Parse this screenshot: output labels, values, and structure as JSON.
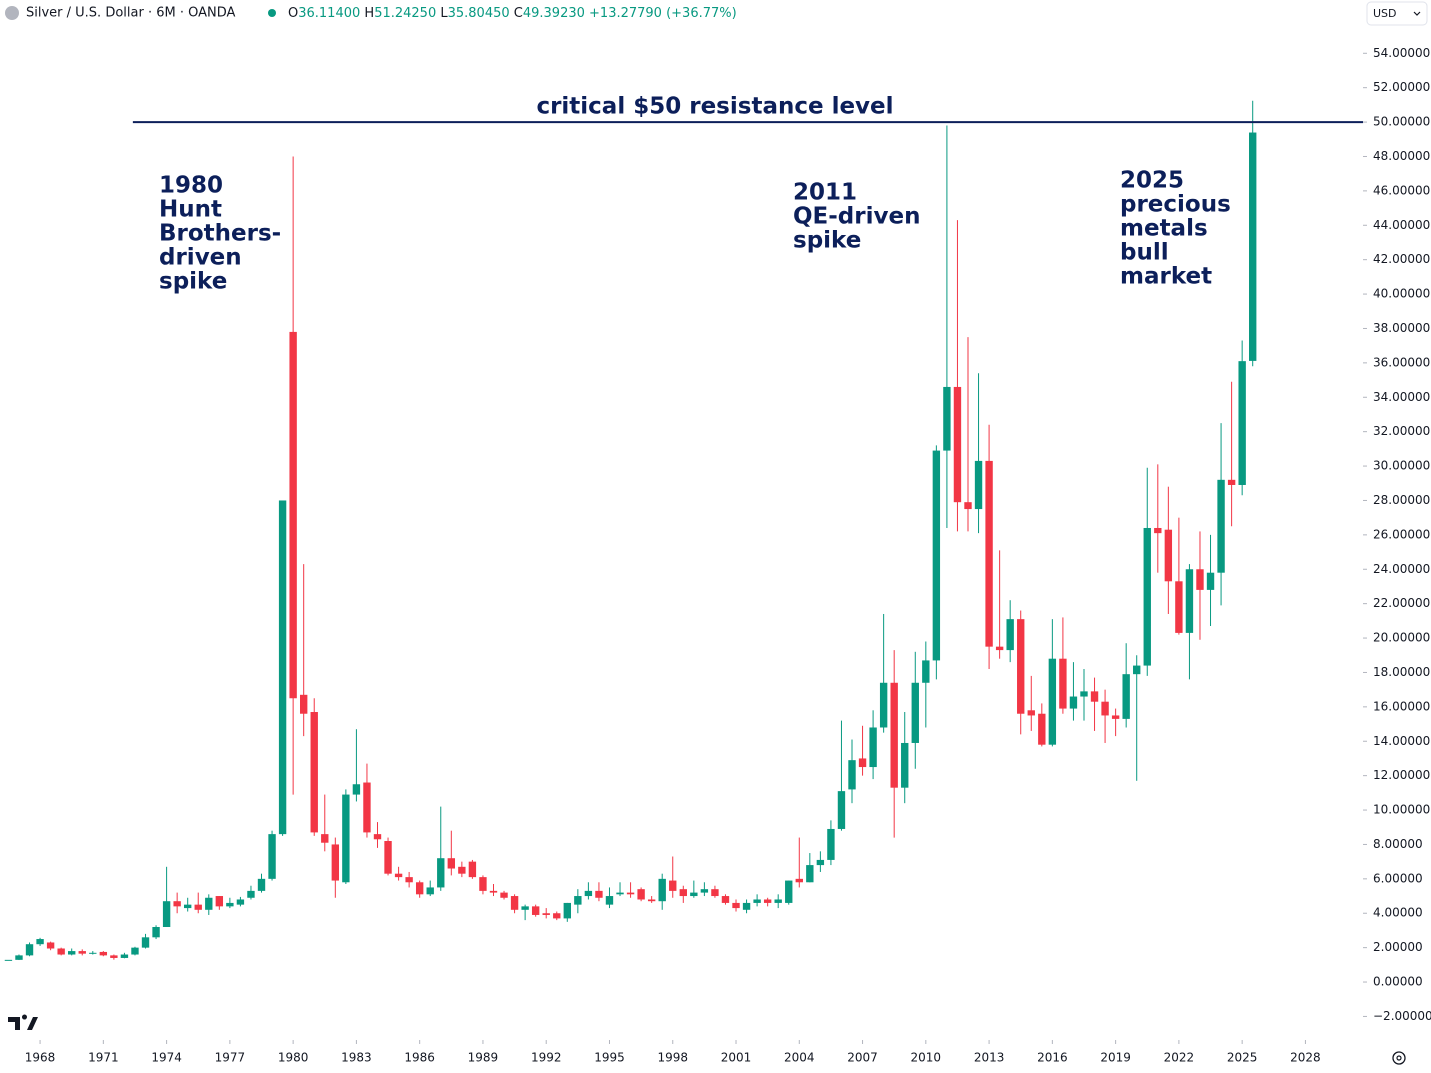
{
  "chart_data": {
    "type": "candlestick",
    "legend": {
      "symbol": "Silver / U.S. Dollar · 6M · OANDA",
      "fields": [
        {
          "key": "O",
          "value": "36.11400"
        },
        {
          "key": "H",
          "value": "51.24250"
        },
        {
          "key": "L",
          "value": "35.80450"
        },
        {
          "key": "C",
          "value": "49.39230"
        }
      ],
      "change": "+13.27790 (+36.77%)"
    },
    "currency": "USD",
    "up_color": "#089981",
    "down_color": "#f23645",
    "xlim": [
      1966.1,
      2030.73
    ],
    "ylim": [
      -3.37,
      55.47
    ],
    "xticks": [
      1968,
      1971,
      1974,
      1977,
      1980,
      1983,
      1986,
      1989,
      1992,
      1995,
      1998,
      2001,
      2004,
      2007,
      2010,
      2013,
      2016,
      2019,
      2022,
      2025,
      2028
    ],
    "yticks": [
      {
        "value": -2,
        "label": "−2.00000"
      },
      {
        "value": 0,
        "label": "0.00000"
      },
      {
        "value": 2,
        "label": "2.00000"
      },
      {
        "value": 4,
        "label": "4.00000"
      },
      {
        "value": 6,
        "label": "6.00000"
      },
      {
        "value": 8,
        "label": "8.00000"
      },
      {
        "value": 10,
        "label": "10.00000"
      },
      {
        "value": 12,
        "label": "12.00000"
      },
      {
        "value": 14,
        "label": "14.00000"
      },
      {
        "value": 16,
        "label": "16.00000"
      },
      {
        "value": 18,
        "label": "18.00000"
      },
      {
        "value": 20,
        "label": "20.00000"
      },
      {
        "value": 22,
        "label": "22.00000"
      },
      {
        "value": 24,
        "label": "24.00000"
      },
      {
        "value": 26,
        "label": "26.00000"
      },
      {
        "value": 28,
        "label": "28.00000"
      },
      {
        "value": 30,
        "label": "30.00000"
      },
      {
        "value": 32,
        "label": "32.00000"
      },
      {
        "value": 34,
        "label": "34.00000"
      },
      {
        "value": 36,
        "label": "36.00000"
      },
      {
        "value": 38,
        "label": "38.00000"
      },
      {
        "value": 40,
        "label": "40.00000"
      },
      {
        "value": 42,
        "label": "42.00000"
      },
      {
        "value": 44,
        "label": "44.00000"
      },
      {
        "value": 46,
        "label": "46.00000"
      },
      {
        "value": 48,
        "label": "48.00000"
      },
      {
        "value": 50,
        "label": "50.00000"
      },
      {
        "value": 52,
        "label": "52.00000"
      },
      {
        "value": 54,
        "label": "54.00000"
      }
    ],
    "grid": false,
    "resistance": {
      "label": "critical $50 resistance level",
      "value": 50,
      "x_start": 1972.4,
      "color": "#0c1f5a"
    },
    "annotations": [
      {
        "lines": [
          "1980",
          "Hunt",
          "Brothers-",
          "driven",
          "spike"
        ]
      },
      {
        "lines": [
          "2011",
          "QE-driven",
          "spike"
        ]
      },
      {
        "lines": [
          "2025",
          "precious",
          "metals",
          "bull",
          "market"
        ]
      }
    ],
    "candles": [
      {
        "x": 1966.5,
        "o": 1.29,
        "h": 1.29,
        "l": 1.29,
        "c": 1.29
      },
      {
        "x": 1967.0,
        "o": 1.29,
        "h": 1.6,
        "l": 1.28,
        "c": 1.55
      },
      {
        "x": 1967.5,
        "o": 1.55,
        "h": 2.3,
        "l": 1.5,
        "c": 2.2
      },
      {
        "x": 1968.0,
        "o": 2.2,
        "h": 2.57,
        "l": 2.1,
        "c": 2.5
      },
      {
        "x": 1968.5,
        "o": 2.3,
        "h": 2.35,
        "l": 1.85,
        "c": 1.95
      },
      {
        "x": 1969.0,
        "o": 1.95,
        "h": 2.0,
        "l": 1.55,
        "c": 1.6
      },
      {
        "x": 1969.5,
        "o": 1.6,
        "h": 1.95,
        "l": 1.55,
        "c": 1.8
      },
      {
        "x": 1970.0,
        "o": 1.8,
        "h": 1.9,
        "l": 1.55,
        "c": 1.65
      },
      {
        "x": 1970.5,
        "o": 1.65,
        "h": 1.8,
        "l": 1.6,
        "c": 1.7
      },
      {
        "x": 1971.0,
        "o": 1.75,
        "h": 1.8,
        "l": 1.5,
        "c": 1.55
      },
      {
        "x": 1971.5,
        "o": 1.55,
        "h": 1.6,
        "l": 1.3,
        "c": 1.4
      },
      {
        "x": 1972.0,
        "o": 1.4,
        "h": 1.7,
        "l": 1.38,
        "c": 1.6
      },
      {
        "x": 1972.5,
        "o": 1.6,
        "h": 2.05,
        "l": 1.55,
        "c": 2.0
      },
      {
        "x": 1973.0,
        "o": 2.0,
        "h": 2.8,
        "l": 1.95,
        "c": 2.6
      },
      {
        "x": 1973.5,
        "o": 2.6,
        "h": 3.3,
        "l": 2.5,
        "c": 3.2
      },
      {
        "x": 1974.0,
        "o": 3.2,
        "h": 6.7,
        "l": 3.2,
        "c": 4.7
      },
      {
        "x": 1974.5,
        "o": 4.7,
        "h": 5.2,
        "l": 4.0,
        "c": 4.4
      },
      {
        "x": 1975.0,
        "o": 4.3,
        "h": 4.9,
        "l": 4.1,
        "c": 4.5
      },
      {
        "x": 1975.5,
        "o": 4.5,
        "h": 5.2,
        "l": 4.0,
        "c": 4.2
      },
      {
        "x": 1976.0,
        "o": 4.2,
        "h": 5.1,
        "l": 3.9,
        "c": 4.9
      },
      {
        "x": 1976.5,
        "o": 5.0,
        "h": 5.0,
        "l": 4.2,
        "c": 4.4
      },
      {
        "x": 1977.0,
        "o": 4.4,
        "h": 4.9,
        "l": 4.3,
        "c": 4.6
      },
      {
        "x": 1977.5,
        "o": 4.5,
        "h": 4.95,
        "l": 4.4,
        "c": 4.8
      },
      {
        "x": 1978.0,
        "o": 4.9,
        "h": 5.6,
        "l": 4.8,
        "c": 5.3
      },
      {
        "x": 1978.5,
        "o": 5.3,
        "h": 6.3,
        "l": 5.2,
        "c": 6.0
      },
      {
        "x": 1979.0,
        "o": 6.0,
        "h": 8.8,
        "l": 5.9,
        "c": 8.6
      },
      {
        "x": 1979.5,
        "o": 8.6,
        "h": 28.0,
        "l": 8.5,
        "c": 28.0
      },
      {
        "x": 1980.0,
        "o": 37.8,
        "h": 48.0,
        "l": 10.9,
        "c": 16.5
      },
      {
        "x": 1980.5,
        "o": 16.7,
        "h": 24.3,
        "l": 14.3,
        "c": 15.6
      },
      {
        "x": 1981.0,
        "o": 15.7,
        "h": 16.5,
        "l": 8.5,
        "c": 8.7
      },
      {
        "x": 1981.5,
        "o": 8.6,
        "h": 10.9,
        "l": 7.6,
        "c": 8.1
      },
      {
        "x": 1982.0,
        "o": 8.0,
        "h": 8.4,
        "l": 4.9,
        "c": 5.9
      },
      {
        "x": 1982.5,
        "o": 5.8,
        "h": 11.2,
        "l": 5.7,
        "c": 10.9
      },
      {
        "x": 1983.0,
        "o": 10.9,
        "h": 14.7,
        "l": 10.5,
        "c": 11.5
      },
      {
        "x": 1983.5,
        "o": 11.6,
        "h": 12.7,
        "l": 8.4,
        "c": 8.7
      },
      {
        "x": 1984.0,
        "o": 8.6,
        "h": 9.3,
        "l": 7.8,
        "c": 8.3
      },
      {
        "x": 1984.5,
        "o": 8.2,
        "h": 8.4,
        "l": 6.2,
        "c": 6.3
      },
      {
        "x": 1985.0,
        "o": 6.3,
        "h": 6.7,
        "l": 5.9,
        "c": 6.1
      },
      {
        "x": 1985.5,
        "o": 6.1,
        "h": 6.4,
        "l": 5.5,
        "c": 5.8
      },
      {
        "x": 1986.0,
        "o": 5.8,
        "h": 5.9,
        "l": 4.9,
        "c": 5.1
      },
      {
        "x": 1986.5,
        "o": 5.1,
        "h": 5.9,
        "l": 5.0,
        "c": 5.5
      },
      {
        "x": 1987.0,
        "o": 5.5,
        "h": 10.2,
        "l": 5.3,
        "c": 7.2
      },
      {
        "x": 1987.5,
        "o": 7.2,
        "h": 8.8,
        "l": 6.2,
        "c": 6.6
      },
      {
        "x": 1988.0,
        "o": 6.7,
        "h": 7.0,
        "l": 6.1,
        "c": 6.3
      },
      {
        "x": 1988.5,
        "o": 7.0,
        "h": 7.1,
        "l": 6.0,
        "c": 6.1
      },
      {
        "x": 1989.0,
        "o": 6.1,
        "h": 6.2,
        "l": 5.1,
        "c": 5.3
      },
      {
        "x": 1989.5,
        "o": 5.3,
        "h": 5.7,
        "l": 5.0,
        "c": 5.2
      },
      {
        "x": 1990.0,
        "o": 5.2,
        "h": 5.3,
        "l": 4.8,
        "c": 4.9
      },
      {
        "x": 1990.5,
        "o": 5.0,
        "h": 5.1,
        "l": 4.0,
        "c": 4.2
      },
      {
        "x": 1991.0,
        "o": 4.2,
        "h": 4.5,
        "l": 3.6,
        "c": 4.4
      },
      {
        "x": 1991.5,
        "o": 4.4,
        "h": 4.5,
        "l": 3.8,
        "c": 3.9
      },
      {
        "x": 1992.0,
        "o": 4.0,
        "h": 4.3,
        "l": 3.7,
        "c": 3.9
      },
      {
        "x": 1992.5,
        "o": 4.0,
        "h": 4.1,
        "l": 3.6,
        "c": 3.7
      },
      {
        "x": 1993.0,
        "o": 3.7,
        "h": 4.6,
        "l": 3.5,
        "c": 4.6
      },
      {
        "x": 1993.5,
        "o": 4.5,
        "h": 5.4,
        "l": 4.0,
        "c": 5.0
      },
      {
        "x": 1994.0,
        "o": 5.0,
        "h": 5.8,
        "l": 4.8,
        "c": 5.3
      },
      {
        "x": 1994.5,
        "o": 5.3,
        "h": 5.8,
        "l": 4.7,
        "c": 4.9
      },
      {
        "x": 1995.0,
        "o": 4.5,
        "h": 5.5,
        "l": 4.3,
        "c": 5.0
      },
      {
        "x": 1995.5,
        "o": 5.1,
        "h": 5.8,
        "l": 5.0,
        "c": 5.2
      },
      {
        "x": 1996.0,
        "o": 5.2,
        "h": 5.8,
        "l": 4.9,
        "c": 5.1
      },
      {
        "x": 1996.5,
        "o": 5.4,
        "h": 5.5,
        "l": 4.7,
        "c": 4.8
      },
      {
        "x": 1997.0,
        "o": 4.8,
        "h": 5.0,
        "l": 4.6,
        "c": 4.7
      },
      {
        "x": 1997.5,
        "o": 4.7,
        "h": 6.3,
        "l": 4.2,
        "c": 6.0
      },
      {
        "x": 1998.0,
        "o": 5.9,
        "h": 7.3,
        "l": 4.9,
        "c": 5.3
      },
      {
        "x": 1998.5,
        "o": 5.4,
        "h": 5.6,
        "l": 4.6,
        "c": 5.0
      },
      {
        "x": 1999.0,
        "o": 5.0,
        "h": 5.9,
        "l": 4.9,
        "c": 5.2
      },
      {
        "x": 1999.5,
        "o": 5.2,
        "h": 5.8,
        "l": 5.0,
        "c": 5.4
      },
      {
        "x": 2000.0,
        "o": 5.4,
        "h": 5.6,
        "l": 4.9,
        "c": 5.0
      },
      {
        "x": 2000.5,
        "o": 5.0,
        "h": 5.1,
        "l": 4.5,
        "c": 4.6
      },
      {
        "x": 2001.0,
        "o": 4.6,
        "h": 4.8,
        "l": 4.1,
        "c": 4.3
      },
      {
        "x": 2001.5,
        "o": 4.2,
        "h": 4.8,
        "l": 4.0,
        "c": 4.6
      },
      {
        "x": 2002.0,
        "o": 4.6,
        "h": 5.1,
        "l": 4.4,
        "c": 4.8
      },
      {
        "x": 2002.5,
        "o": 4.8,
        "h": 4.9,
        "l": 4.4,
        "c": 4.6
      },
      {
        "x": 2003.0,
        "o": 4.6,
        "h": 5.1,
        "l": 4.3,
        "c": 4.8
      },
      {
        "x": 2003.5,
        "o": 4.6,
        "h": 5.9,
        "l": 4.5,
        "c": 5.9
      },
      {
        "x": 2004.0,
        "o": 6.0,
        "h": 8.4,
        "l": 5.5,
        "c": 5.8
      },
      {
        "x": 2004.5,
        "o": 5.8,
        "h": 7.5,
        "l": 5.8,
        "c": 6.8
      },
      {
        "x": 2005.0,
        "o": 6.8,
        "h": 7.6,
        "l": 6.4,
        "c": 7.1
      },
      {
        "x": 2005.5,
        "o": 7.1,
        "h": 9.4,
        "l": 6.8,
        "c": 8.9
      },
      {
        "x": 2006.0,
        "o": 8.9,
        "h": 15.2,
        "l": 8.8,
        "c": 11.1
      },
      {
        "x": 2006.5,
        "o": 11.2,
        "h": 14.1,
        "l": 10.4,
        "c": 12.9
      },
      {
        "x": 2007.0,
        "o": 13.0,
        "h": 14.9,
        "l": 12.0,
        "c": 12.5
      },
      {
        "x": 2007.5,
        "o": 12.5,
        "h": 15.8,
        "l": 11.8,
        "c": 14.8
      },
      {
        "x": 2008.0,
        "o": 14.8,
        "h": 21.4,
        "l": 14.5,
        "c": 17.4
      },
      {
        "x": 2008.5,
        "o": 17.4,
        "h": 19.3,
        "l": 8.4,
        "c": 11.3
      },
      {
        "x": 2009.0,
        "o": 11.3,
        "h": 15.7,
        "l": 10.4,
        "c": 13.9
      },
      {
        "x": 2009.5,
        "o": 13.9,
        "h": 19.2,
        "l": 12.4,
        "c": 17.4
      },
      {
        "x": 2010.0,
        "o": 17.4,
        "h": 19.8,
        "l": 14.8,
        "c": 18.7
      },
      {
        "x": 2010.5,
        "o": 18.7,
        "h": 31.2,
        "l": 17.6,
        "c": 30.9
      },
      {
        "x": 2011.0,
        "o": 30.9,
        "h": 49.8,
        "l": 26.4,
        "c": 34.6
      },
      {
        "x": 2011.5,
        "o": 34.6,
        "h": 44.3,
        "l": 26.2,
        "c": 27.9
      },
      {
        "x": 2012.0,
        "o": 27.9,
        "h": 37.5,
        "l": 26.2,
        "c": 27.5
      },
      {
        "x": 2012.5,
        "o": 27.5,
        "h": 35.4,
        "l": 26.1,
        "c": 30.3
      },
      {
        "x": 2013.0,
        "o": 30.3,
        "h": 32.4,
        "l": 18.2,
        "c": 19.5
      },
      {
        "x": 2013.5,
        "o": 19.5,
        "h": 25.1,
        "l": 18.8,
        "c": 19.3
      },
      {
        "x": 2014.0,
        "o": 19.3,
        "h": 22.2,
        "l": 18.6,
        "c": 21.1
      },
      {
        "x": 2014.5,
        "o": 21.1,
        "h": 21.6,
        "l": 14.4,
        "c": 15.6
      },
      {
        "x": 2015.0,
        "o": 15.8,
        "h": 17.8,
        "l": 14.6,
        "c": 15.5
      },
      {
        "x": 2015.5,
        "o": 15.6,
        "h": 16.2,
        "l": 13.7,
        "c": 13.8
      },
      {
        "x": 2016.0,
        "o": 13.8,
        "h": 21.1,
        "l": 13.7,
        "c": 18.8
      },
      {
        "x": 2016.5,
        "o": 18.8,
        "h": 21.2,
        "l": 15.6,
        "c": 15.9
      },
      {
        "x": 2017.0,
        "o": 15.9,
        "h": 18.6,
        "l": 15.2,
        "c": 16.6
      },
      {
        "x": 2017.5,
        "o": 16.6,
        "h": 18.2,
        "l": 15.2,
        "c": 16.9
      },
      {
        "x": 2018.0,
        "o": 16.9,
        "h": 17.7,
        "l": 14.6,
        "c": 16.3
      },
      {
        "x": 2018.5,
        "o": 16.3,
        "h": 17.0,
        "l": 13.9,
        "c": 15.5
      },
      {
        "x": 2019.0,
        "o": 15.5,
        "h": 15.9,
        "l": 14.3,
        "c": 15.3
      },
      {
        "x": 2019.5,
        "o": 15.3,
        "h": 19.7,
        "l": 14.8,
        "c": 17.9
      },
      {
        "x": 2020.0,
        "o": 17.9,
        "h": 19.0,
        "l": 11.7,
        "c": 18.4
      },
      {
        "x": 2020.5,
        "o": 18.4,
        "h": 29.9,
        "l": 17.8,
        "c": 26.4
      },
      {
        "x": 2021.0,
        "o": 26.4,
        "h": 30.1,
        "l": 23.8,
        "c": 26.1
      },
      {
        "x": 2021.5,
        "o": 26.3,
        "h": 28.8,
        "l": 21.4,
        "c": 23.3
      },
      {
        "x": 2022.0,
        "o": 23.3,
        "h": 27.0,
        "l": 20.2,
        "c": 20.3
      },
      {
        "x": 2022.5,
        "o": 20.3,
        "h": 24.3,
        "l": 17.6,
        "c": 24.0
      },
      {
        "x": 2023.0,
        "o": 24.0,
        "h": 26.2,
        "l": 19.9,
        "c": 22.8
      },
      {
        "x": 2023.5,
        "o": 22.8,
        "h": 26.0,
        "l": 20.7,
        "c": 23.8
      },
      {
        "x": 2024.0,
        "o": 23.8,
        "h": 32.5,
        "l": 21.9,
        "c": 29.2
      },
      {
        "x": 2024.5,
        "o": 29.2,
        "h": 34.9,
        "l": 26.5,
        "c": 28.9
      },
      {
        "x": 2025.0,
        "o": 28.9,
        "h": 37.3,
        "l": 28.3,
        "c": 36.1
      },
      {
        "x": 2025.5,
        "o": 36.114,
        "h": 51.2425,
        "l": 35.8045,
        "c": 49.3923
      }
    ]
  }
}
